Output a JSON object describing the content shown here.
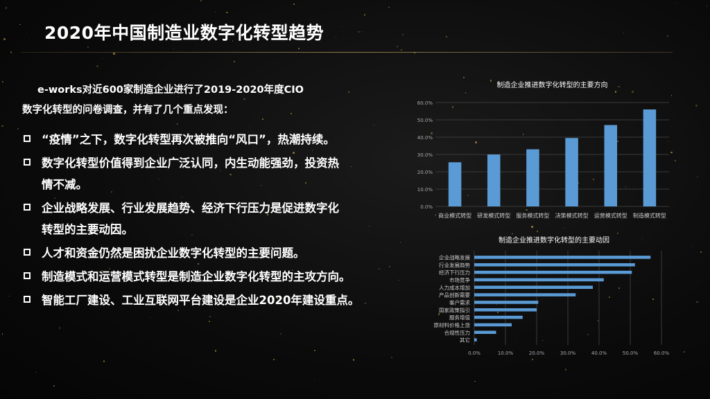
{
  "slide": {
    "title": "2020年中国制造业数字化转型趋势",
    "intro_line1": "e-works对近600家制造企业进行了2019-2020年度CIO",
    "intro_line2": "数字化转型的问卷调查，并有了几个重点发现：",
    "bullets": [
      "“疫情”之下，数字化转型再次被推向“风口”，热潮持续。",
      "数字化转型价值得到企业广泛认同，内生动能强劲，投资热",
      "情不减。",
      "企业战略发展、行业发展趋势、经济下行压力是促进数字化",
      "转型的主要动因。",
      "人才和资金仍然是困扰企业数字化转型的主要问题。",
      "制造模式和运营模式转型是制造企业数字化转型的主攻方向。",
      "智能工厂建设、工业互联网平台建设是企业2020年建设重点。"
    ]
  },
  "chart_data": [
    {
      "type": "bar",
      "title": "制造企业推进数字化转型的主要方向",
      "categories": [
        "商业模式转型",
        "研发模式转型",
        "服务模式转型",
        "决策模式转型",
        "运营模式转型",
        "制造模式转型"
      ],
      "values": [
        25.5,
        30.0,
        33.0,
        39.5,
        47.0,
        56.0
      ],
      "yticks": [
        "0.0%",
        "10.0%",
        "20.0%",
        "30.0%",
        "40.0%",
        "50.0%",
        "60.0%"
      ],
      "ylim": [
        0,
        60
      ],
      "grid": true,
      "color": "#5b9bd5"
    },
    {
      "type": "bar",
      "orientation": "horizontal",
      "title": "制造企业推进数字化转型的主要动因",
      "categories": [
        "企业战略发展",
        "行业发展趋势",
        "经济下行压力",
        "市场竞争",
        "人力成本增加",
        "产品创新需要",
        "客户需求",
        "国家政策指引",
        "服务增值",
        "原材料价格上涨",
        "合规性压力",
        "其它"
      ],
      "values": [
        56.5,
        51.5,
        50.5,
        41.5,
        38.0,
        32.5,
        20.5,
        20.0,
        15.5,
        12.0,
        7.0,
        0.8
      ],
      "xticks": [
        "0.0%",
        "10.0%",
        "20.0%",
        "30.0%",
        "40.0%",
        "50.0%",
        "60.0%"
      ],
      "xlim": [
        0,
        60
      ],
      "grid": true,
      "color": "#5b9bd5"
    }
  ]
}
